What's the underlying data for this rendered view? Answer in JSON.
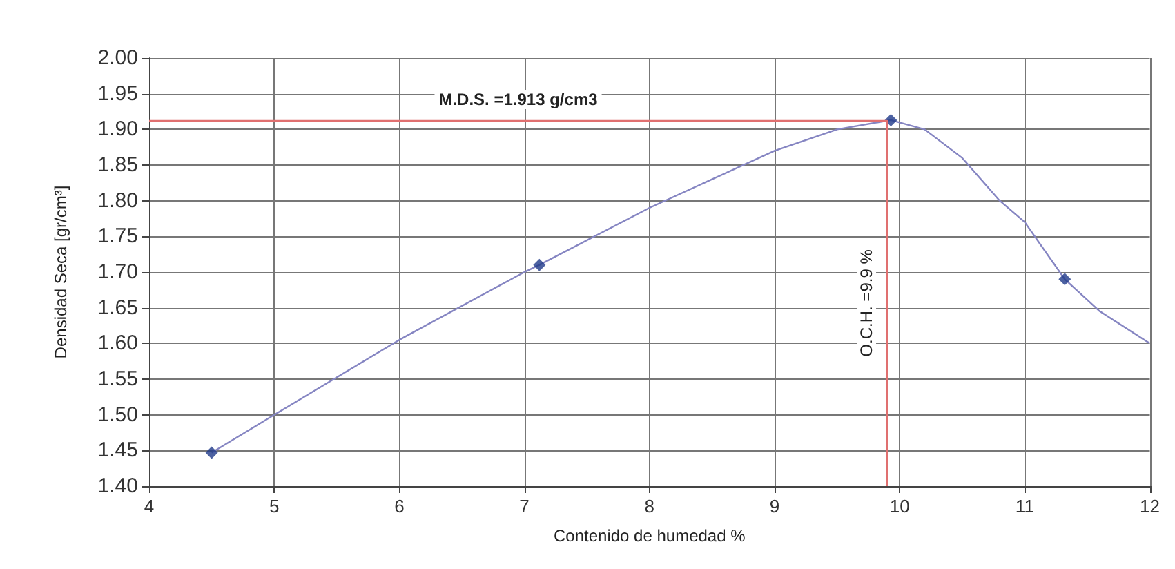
{
  "chart_data": {
    "type": "scatter",
    "xlabel": "Contenido de humedad %",
    "ylabel": "Densidad Seca [gr/cm³]",
    "xlim": [
      4,
      12
    ],
    "xticks": [
      4,
      5,
      6,
      7,
      8,
      9,
      10,
      11,
      12
    ],
    "ylim": [
      1.4,
      2.0
    ],
    "yticks": [
      {
        "value": 1.4,
        "label": "1.40"
      },
      {
        "value": 1.45,
        "label": "1.45"
      },
      {
        "value": 1.5,
        "label": "1.50"
      },
      {
        "value": 1.55,
        "label": "1.55"
      },
      {
        "value": 1.6,
        "label": "1.60"
      },
      {
        "value": 1.65,
        "label": "1.65"
      },
      {
        "value": 1.7,
        "label": "1.70"
      },
      {
        "value": 1.75,
        "label": "1.75"
      },
      {
        "value": 1.8,
        "label": "1.80"
      },
      {
        "value": 1.85,
        "label": "1.85"
      },
      {
        "value": 1.9,
        "label": "1.90"
      },
      {
        "value": 1.95,
        "label": "1.95"
      },
      {
        "value": 2.0,
        "label": "2.00"
      }
    ],
    "grid": true,
    "marker": "diamond",
    "series": [
      {
        "type": "line",
        "color": "#8585c2",
        "marker": "none",
        "x": [
          4.5,
          5,
          6,
          7,
          7.12,
          8,
          9,
          9.5,
          9.93,
          10.2,
          10.5,
          10.8,
          11,
          11.32,
          11.6,
          12
        ],
        "values": [
          1.447,
          1.5,
          1.605,
          1.7,
          1.71,
          1.79,
          1.87,
          1.9,
          1.913,
          1.9,
          1.86,
          1.8,
          1.77,
          1.69,
          1.645,
          1.6
        ]
      },
      {
        "color": "#1f3a8a",
        "x": [
          4.5,
          7.12,
          9.93,
          11.32
        ],
        "values": [
          1.447,
          1.71,
          1.913,
          1.69
        ]
      }
    ],
    "ref_lines": [
      {
        "axis": "y",
        "value": 1.913,
        "label": "M.D.S. =1.913 g/cm3",
        "color": "#e07070"
      },
      {
        "axis": "x",
        "value": 9.9,
        "label": "O.C.H. =9.9 %",
        "color": "#e07070"
      }
    ]
  }
}
